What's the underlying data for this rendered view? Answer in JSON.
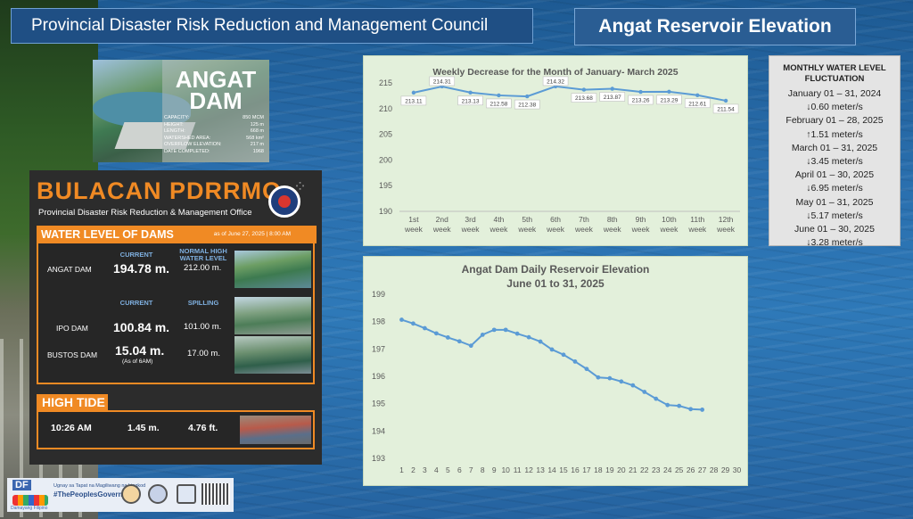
{
  "header": {
    "council_title": "Provincial Disaster Risk Reduction and Management Council",
    "elevation_title": "Angat Reservoir Elevation"
  },
  "dam_card": {
    "name_line1": "ANGAT",
    "name_line2": "DAM",
    "specs": [
      {
        "label": "CAPACITY:",
        "value": "850 MCM"
      },
      {
        "label": "HEIGHT:",
        "value": "125 m"
      },
      {
        "label": "LENGTH:",
        "value": "668 m"
      },
      {
        "label": "WATERSHED AREA:",
        "value": "568 km²"
      },
      {
        "label": "OVERFLOW ELEVATION:",
        "value": "217 m"
      },
      {
        "label": "DATE COMPLETED:",
        "value": "1968"
      }
    ]
  },
  "pdrrmo": {
    "brand": "BULACAN PDRRMO",
    "subtitle": "Provincial Disaster Risk Reduction & Management Office",
    "water_level_title": "WATER LEVEL OF DAMS",
    "as_of": "as of June 27, 2025 | 8:00 AM",
    "col_current": "CURRENT",
    "col_normal_high": "NORMAL HIGH WATER LEVEL",
    "col_spilling": "SPILLING",
    "dams": [
      {
        "name": "ANGAT DAM",
        "current": "194.78 m.",
        "reference": "212.00 m."
      },
      {
        "name": "IPO DAM",
        "current": "100.84 m.",
        "reference": "101.00 m."
      },
      {
        "name": "BUSTOS DAM",
        "current": "15.04 m.",
        "note": "(As of 6AM)",
        "reference": "17.00 m."
      }
    ],
    "high_tide_title": "HIGH TIDE",
    "high_tide": {
      "time": "10:26 AM",
      "meters": "1.45 m.",
      "feet": "4.76 ft."
    }
  },
  "footer": {
    "df": "DF",
    "df_caption": "Damayang Filipino",
    "tagline": "Ugnay sa Tapat na Magiliwang na Lingkod",
    "hashtag": "#ThePeoplesGovernor"
  },
  "fluctuation": {
    "title": "MONTHLY WATER LEVEL FLUCTUATION",
    "items": [
      {
        "period": "January 01 – 31, 2024",
        "change": "↓0.60 meter/s"
      },
      {
        "period": "February 01 – 28, 2025",
        "change": "↑1.51 meter/s"
      },
      {
        "period": "March 01 – 31, 2025",
        "change": "↓3.45 meter/s"
      },
      {
        "period": "April 01 – 30, 2025",
        "change": "↓6.95  meter/s"
      },
      {
        "period": "May 01 – 31, 2025",
        "change": "↓5.17 meter/s"
      },
      {
        "period": "June 01 – 30, 2025",
        "change": "↓3.28 meter/s"
      }
    ]
  },
  "chart_data": [
    {
      "type": "line",
      "title": "Weekly Decrease for the Month of  January- March 2025",
      "categories": [
        "1st week",
        "2nd week",
        "3rd week",
        "4th week",
        "5th week",
        "6th week",
        "7th week",
        "8th week",
        "9th week",
        "10th week",
        "11th week",
        "12th week"
      ],
      "values": [
        213.11,
        214.31,
        213.13,
        212.58,
        212.38,
        214.32,
        213.68,
        213.87,
        213.26,
        213.29,
        212.61,
        211.54
      ],
      "ylim": [
        190,
        215
      ],
      "yticks": [
        190,
        195,
        200,
        205,
        210,
        215
      ],
      "color": "#5b9bd5",
      "grid": false
    },
    {
      "type": "line",
      "title": "Angat Dam Daily Reservoir Elevation",
      "subtitle": "June 01 to 31, 2025",
      "x": [
        1,
        2,
        3,
        4,
        5,
        6,
        7,
        8,
        9,
        10,
        11,
        12,
        13,
        14,
        15,
        16,
        17,
        18,
        19,
        20,
        21,
        22,
        23,
        24,
        25,
        26,
        27
      ],
      "values": [
        198.07,
        197.93,
        197.76,
        197.57,
        197.42,
        197.28,
        197.12,
        197.52,
        197.7,
        197.7,
        197.56,
        197.43,
        197.27,
        196.98,
        196.79,
        196.54,
        196.27,
        195.96,
        195.93,
        195.81,
        195.67,
        195.43,
        195.18,
        194.95,
        194.92,
        194.8,
        194.78
      ],
      "xticks": [
        1,
        2,
        3,
        4,
        5,
        6,
        7,
        8,
        9,
        10,
        11,
        12,
        13,
        14,
        15,
        16,
        17,
        18,
        19,
        20,
        21,
        22,
        23,
        24,
        25,
        26,
        27,
        28,
        29,
        30
      ],
      "ylim": [
        193,
        199
      ],
      "yticks": [
        193,
        194,
        195,
        196,
        197,
        198,
        199
      ],
      "color": "#5b9bd5",
      "grid": false
    }
  ]
}
